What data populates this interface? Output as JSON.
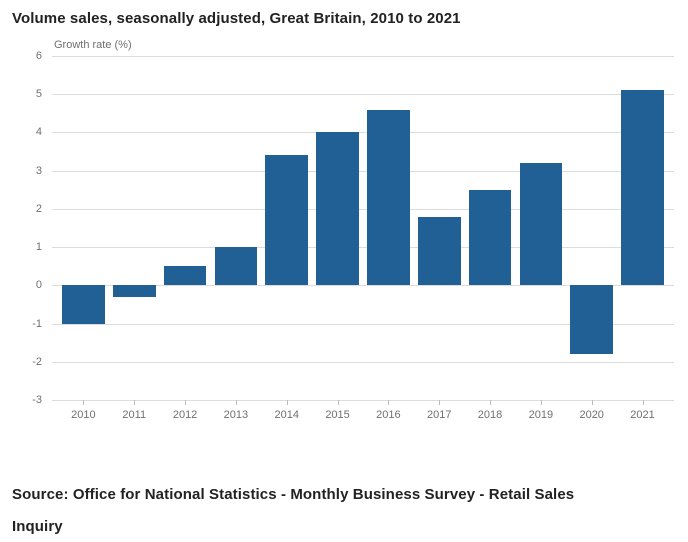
{
  "page": {
    "title": "Volume sales, seasonally adjusted, Great Britain, 2010 to 2021",
    "source": "Source: Office for National Statistics - Monthly Business Survey - Retail Sales Inquiry"
  },
  "chart_data": {
    "type": "bar",
    "title": "Volume sales, seasonally adjusted, Great Britain, 2010 to 2021",
    "ylabel": "Growth rate (%)",
    "xlabel": "",
    "categories": [
      "2010",
      "2011",
      "2012",
      "2013",
      "2014",
      "2015",
      "2016",
      "2017",
      "2018",
      "2019",
      "2020",
      "2021"
    ],
    "values": [
      -1.0,
      -0.3,
      0.5,
      1.0,
      3.4,
      4.0,
      4.6,
      1.8,
      2.5,
      3.2,
      -1.8,
      5.1
    ],
    "ylim": [
      -3,
      6
    ],
    "yticks": [
      6,
      5,
      4,
      3,
      2,
      1,
      0,
      -1,
      -2,
      -3
    ],
    "bar_color": "#206095",
    "grid": true,
    "legend_position": "none"
  }
}
